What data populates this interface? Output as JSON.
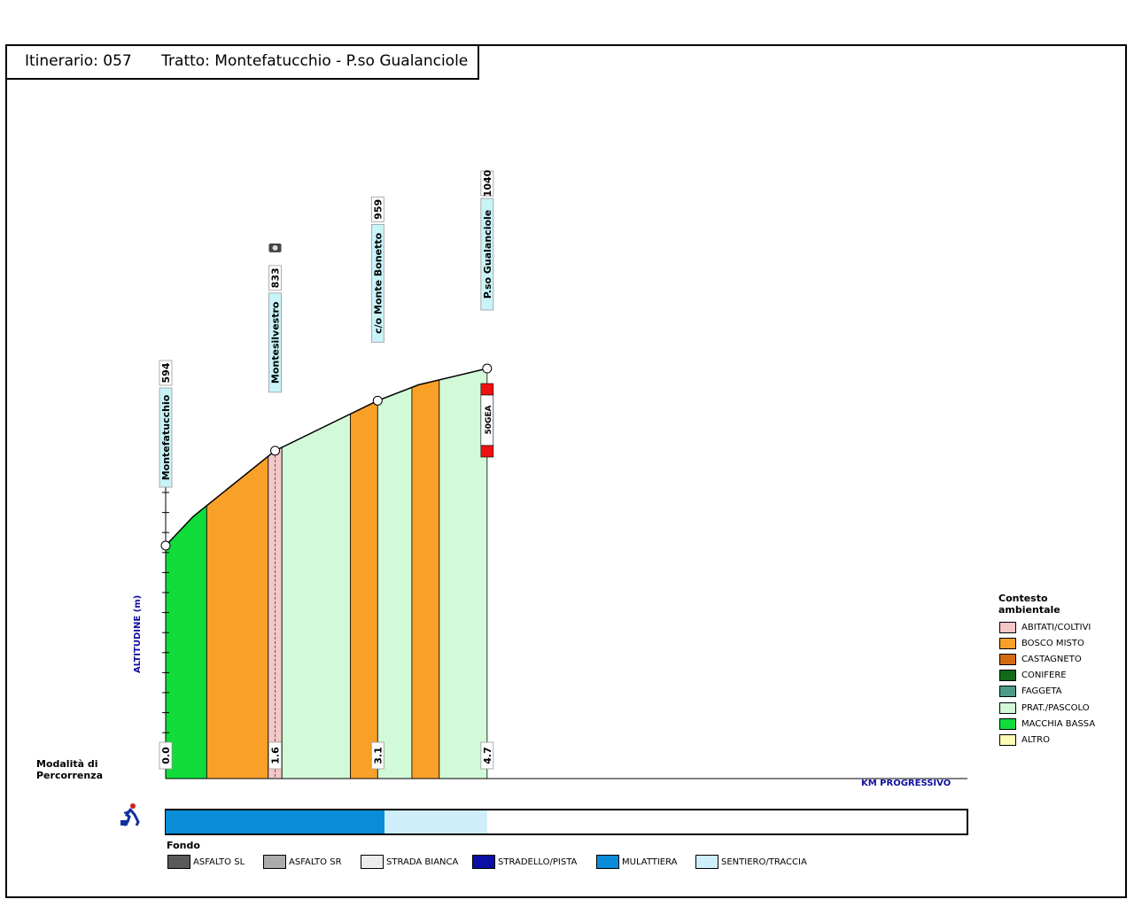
{
  "header": {
    "itinerary": "Itinerario: 057",
    "route": "Tratto: Montefatucchio - P.so Gualanciole"
  },
  "axes": {
    "ylabel": "ALTITUDINE (m)",
    "xlabel": "KM PROGRESSIVO"
  },
  "chart_data": {
    "type": "area",
    "xlabel": "KM PROGRESSIVO",
    "ylabel": "ALTITUDINE (m)",
    "profile": [
      {
        "km": 0.0,
        "alt": 594
      },
      {
        "km": 0.4,
        "alt": 667
      },
      {
        "km": 1.6,
        "alt": 833
      },
      {
        "km": 3.1,
        "alt": 959
      },
      {
        "km": 3.7,
        "alt": 999
      },
      {
        "km": 4.7,
        "alt": 1040
      }
    ],
    "waypoints": [
      {
        "name": "Montefatucchio",
        "km": 0.0,
        "km_label": "0.0",
        "alt": 594,
        "alt_label": "594"
      },
      {
        "name": "Montesilvestro",
        "km": 1.6,
        "km_label": "1.6",
        "alt": 833,
        "alt_label": "833",
        "photo": true
      },
      {
        "name": "c/o Monte Bonetto",
        "km": 3.1,
        "km_label": "3.1",
        "alt": 959,
        "alt_label": "959"
      },
      {
        "name": "P.so Gualanciole",
        "km": 4.7,
        "km_label": "4.7",
        "alt": 1040,
        "alt_label": "1040"
      }
    ],
    "environment_segments": [
      {
        "from_km": 0.0,
        "to_km": 0.6,
        "type": "MACCHIA BASSA"
      },
      {
        "from_km": 0.6,
        "to_km": 1.5,
        "type": "BOSCO MISTO"
      },
      {
        "from_km": 1.5,
        "to_km": 1.7,
        "type": "ABITATI/COLTIVI"
      },
      {
        "from_km": 1.7,
        "to_km": 2.7,
        "type": "PRAT./PASCOLO"
      },
      {
        "from_km": 2.7,
        "to_km": 3.1,
        "type": "BOSCO MISTO"
      },
      {
        "from_km": 3.1,
        "to_km": 3.6,
        "type": "PRAT./PASCOLO"
      },
      {
        "from_km": 3.6,
        "to_km": 4.0,
        "type": "BOSCO MISTO"
      },
      {
        "from_km": 4.0,
        "to_km": 4.7,
        "type": "PRAT./PASCOLO"
      }
    ],
    "trail_marker": {
      "km": 4.7,
      "label": "50GEA"
    },
    "surface_segments": [
      {
        "from_km": 0.0,
        "to_km": 3.2,
        "type": "MULATTIERA"
      },
      {
        "from_km": 3.2,
        "to_km": 4.7,
        "type": "SENTIERO/TRACCIA"
      }
    ]
  },
  "legend_env": {
    "title_line1": "Contesto",
    "title_line2": "ambientale",
    "items": [
      {
        "label": "ABITATI/COLTIVI",
        "color": "#f6c7c7"
      },
      {
        "label": "BOSCO MISTO",
        "color": "#f8a028"
      },
      {
        "label": "CASTAGNETO",
        "color": "#d46a14"
      },
      {
        "label": "CONIFERE",
        "color": "#106a18"
      },
      {
        "label": "FAGGETA",
        "color": "#4c9c88"
      },
      {
        "label": "PRAT./PASCOLO",
        "color": "#d2fad8"
      },
      {
        "label": "MACCHIA BASSA",
        "color": "#10dc3c"
      },
      {
        "label": "ALTRO",
        "color": "#fcfcb4"
      }
    ]
  },
  "modalita": {
    "line1": "Modalità di",
    "line2": "Percorrenza"
  },
  "fondo": {
    "title": "Fondo",
    "items": [
      {
        "label": "ASFALTO SL",
        "color": "#5a5a5a"
      },
      {
        "label": "ASFALTO SR",
        "color": "#acacac"
      },
      {
        "label": "STRADA BIANCA",
        "color": "#ececec"
      },
      {
        "label": "STRADELLO/PISTA",
        "color": "#0a10a4"
      },
      {
        "label": "MULATTIERA",
        "color": "#0a8cd8"
      },
      {
        "label": "SENTIERO/TRACCIA",
        "color": "#cdeefa"
      }
    ]
  }
}
